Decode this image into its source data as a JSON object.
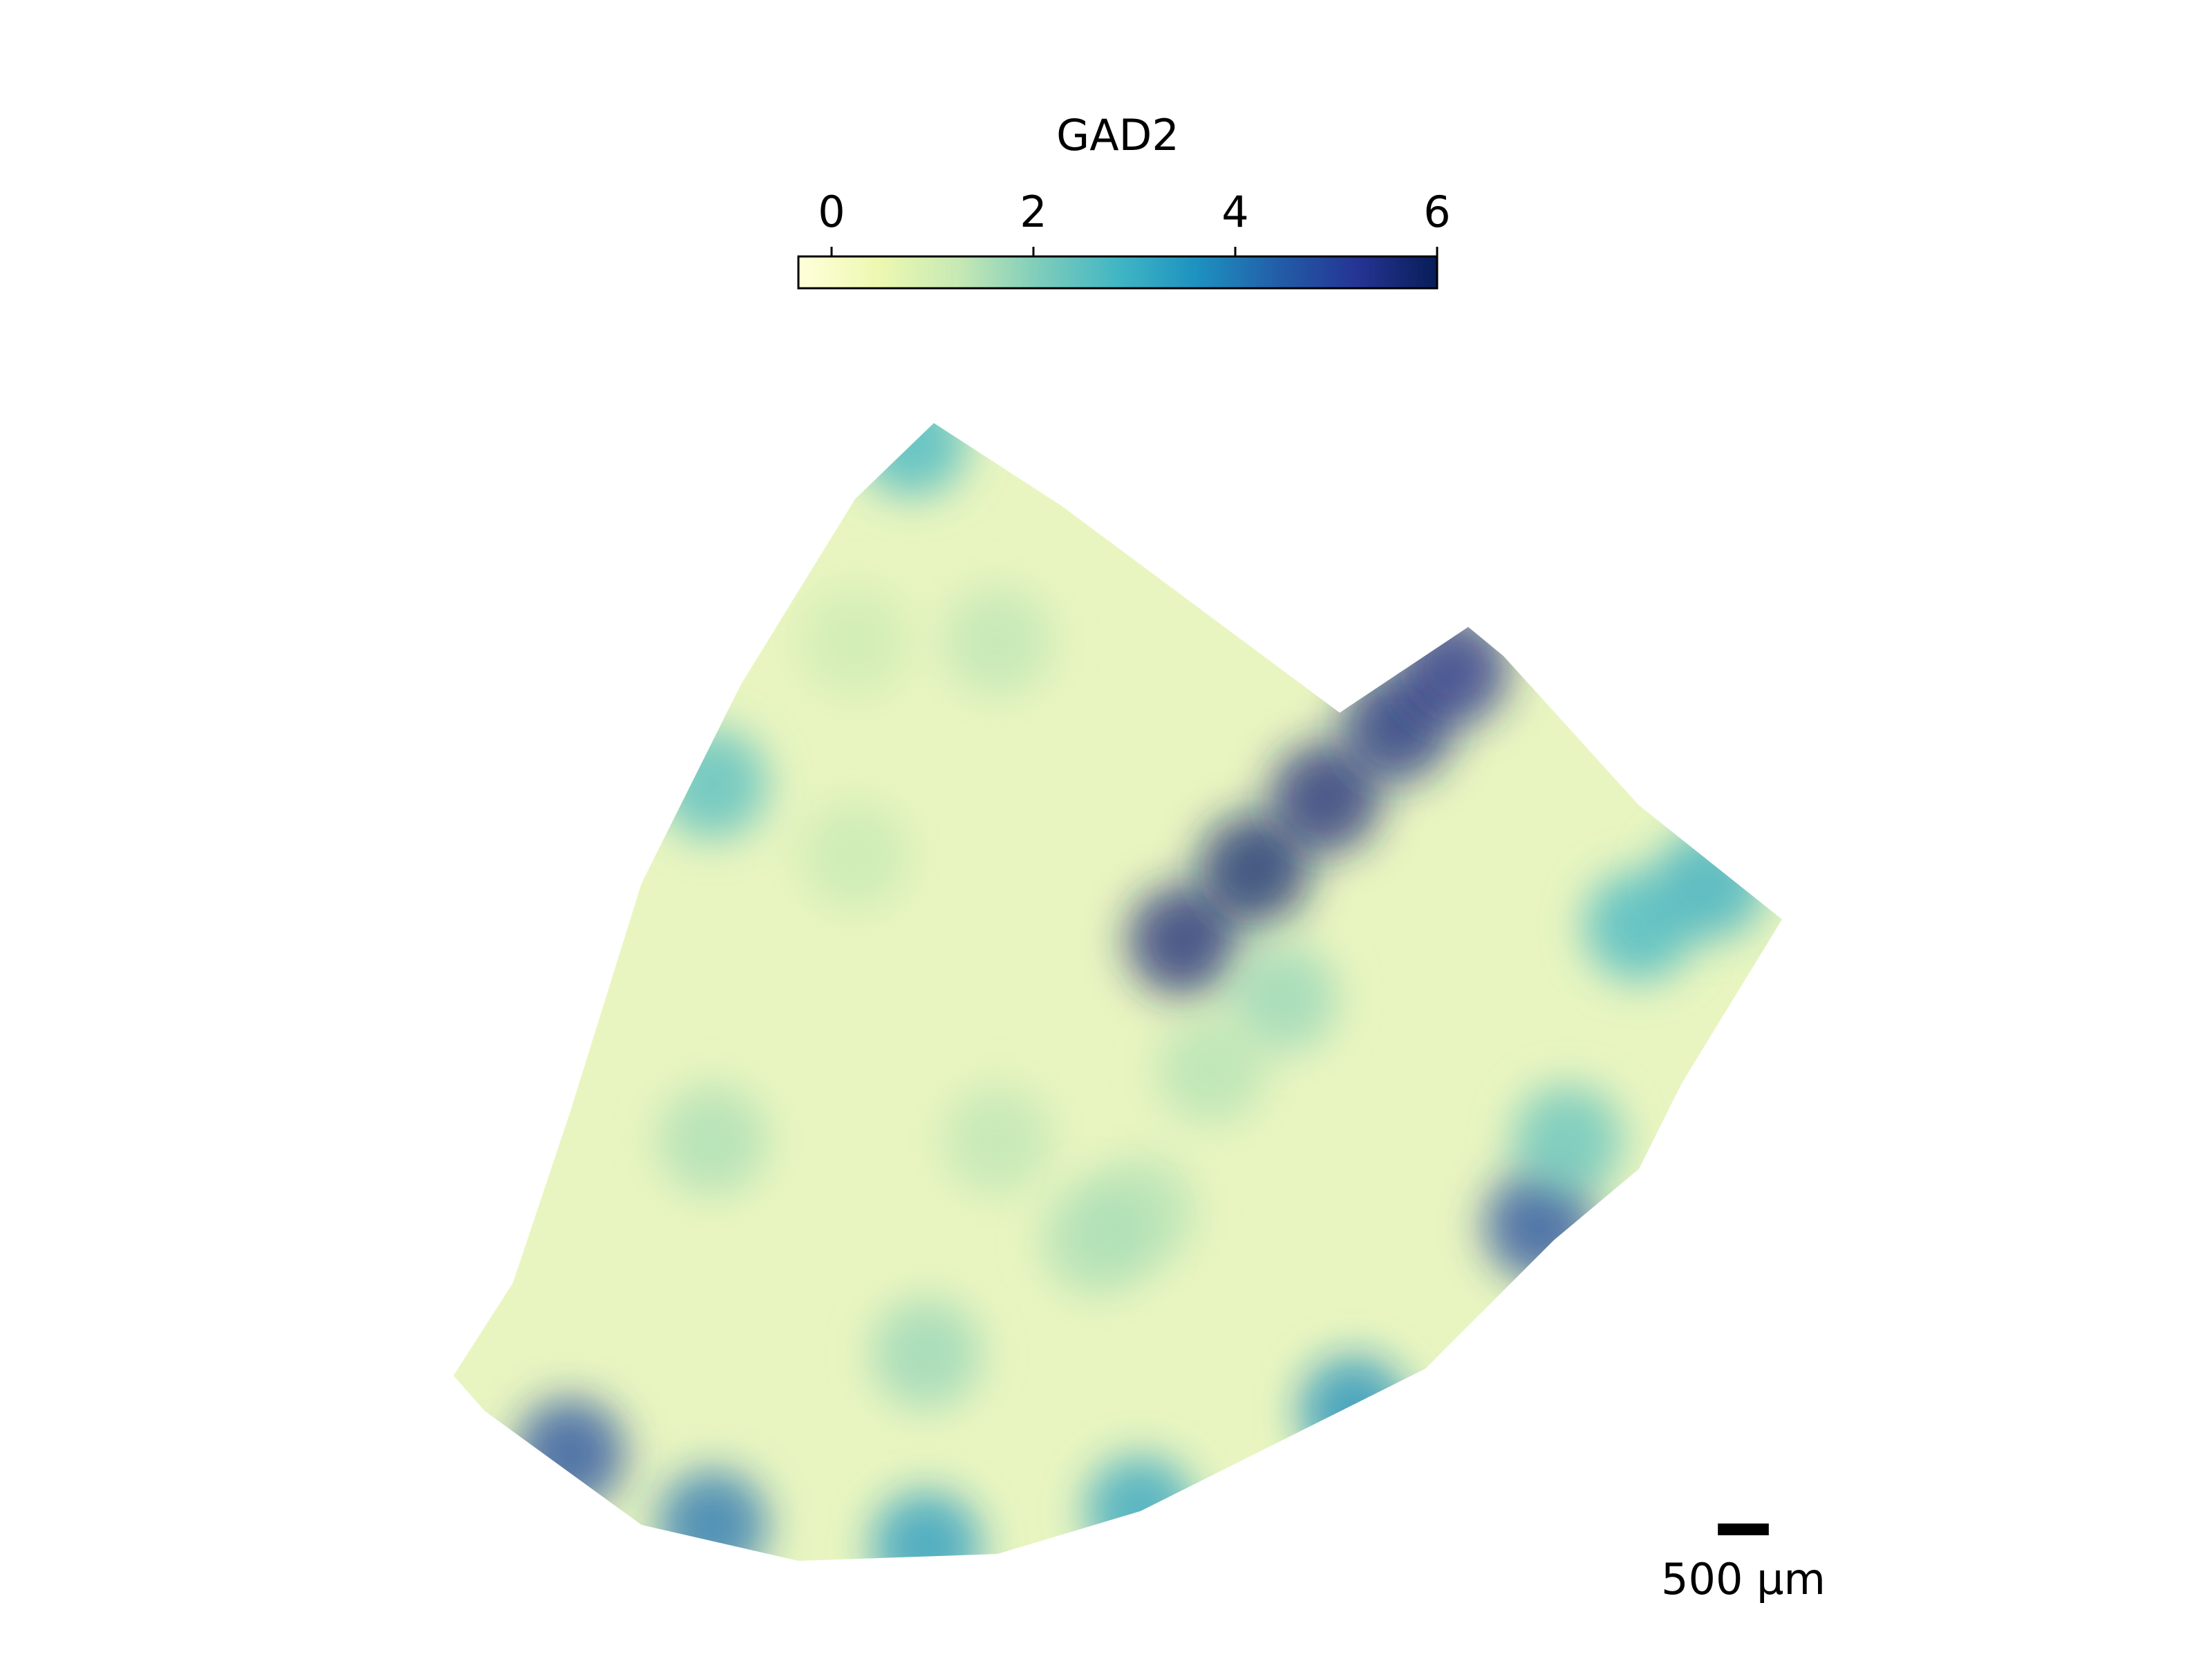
{
  "chart_data": {
    "type": "scatter",
    "colorbar_label": "GAD2",
    "clim": [
      0,
      6
    ],
    "cticks": [
      0,
      2,
      4,
      6
    ],
    "colormap": [
      "#ffffd9",
      "#edf8b1",
      "#c7e9b4",
      "#7fcdbb",
      "#41b6c4",
      "#1d91c0",
      "#225ea8",
      "#253494",
      "#081d58"
    ],
    "x": [
      11620,
      12320,
      13020,
      13720,
      14280,
      5600,
      7000,
      9100,
      11200,
      13300,
      15120,
      8400,
      7000,
      9800,
      9100,
      11200,
      12600,
      9800,
      8400,
      16100,
      16800,
      7000,
      8960,
      10780,
      11900,
      15400
    ],
    "y": [
      9240,
      8540,
      7840,
      7140,
      6580,
      14280,
      14980,
      15190,
      14840,
      13860,
      12040,
      8400,
      11200,
      11200,
      13300,
      11900,
      9800,
      6300,
      6300,
      9100,
      8680,
      7700,
      4340,
      12180,
      10500,
      11200
    ],
    "values": [
      5.6,
      5.7,
      5.6,
      5.5,
      5.4,
      4.8,
      4.2,
      3.6,
      3.4,
      3.8,
      4.8,
      1.5,
      1.8,
      1.6,
      2.0,
      1.7,
      2.0,
      1.6,
      1.4,
      3.0,
      3.2,
      2.8,
      3.0,
      1.8,
      1.7,
      2.6
    ],
    "scalebar": {
      "length": 500,
      "label": "500 µm"
    }
  }
}
